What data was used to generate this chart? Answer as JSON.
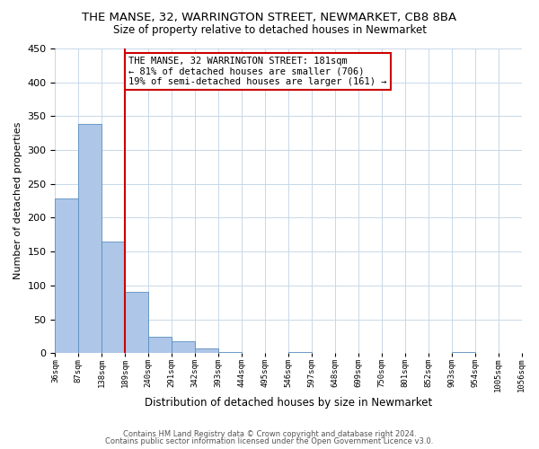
{
  "title": "THE MANSE, 32, WARRINGTON STREET, NEWMARKET, CB8 8BA",
  "subtitle": "Size of property relative to detached houses in Newmarket",
  "xlabel": "Distribution of detached houses by size in Newmarket",
  "ylabel": "Number of detached properties",
  "bar_values": [
    228,
    338,
    165,
    90,
    24,
    18,
    7,
    2,
    0,
    0,
    2,
    0,
    0,
    0,
    0,
    0,
    0,
    2,
    0,
    0
  ],
  "bin_labels": [
    "36sqm",
    "87sqm",
    "138sqm",
    "189sqm",
    "240sqm",
    "291sqm",
    "342sqm",
    "393sqm",
    "444sqm",
    "495sqm",
    "546sqm",
    "597sqm",
    "648sqm",
    "699sqm",
    "750sqm",
    "801sqm",
    "852sqm",
    "903sqm",
    "954sqm",
    "1005sqm",
    "1056sqm"
  ],
  "bar_color": "#aec6e8",
  "bar_edge_color": "#5a8fc0",
  "vline_color": "#cc0000",
  "annotation_box_text": "THE MANSE, 32 WARRINGTON STREET: 181sqm\n← 81% of detached houses are smaller (706)\n19% of semi-detached houses are larger (161) →",
  "annotation_box_color": "#cc0000",
  "ylim": [
    0,
    450
  ],
  "yticks": [
    0,
    50,
    100,
    150,
    200,
    250,
    300,
    350,
    400,
    450
  ],
  "footer_line1": "Contains HM Land Registry data © Crown copyright and database right 2024.",
  "footer_line2": "Contains public sector information licensed under the Open Government Licence v3.0.",
  "background_color": "#ffffff",
  "grid_color": "#c8d8e8"
}
